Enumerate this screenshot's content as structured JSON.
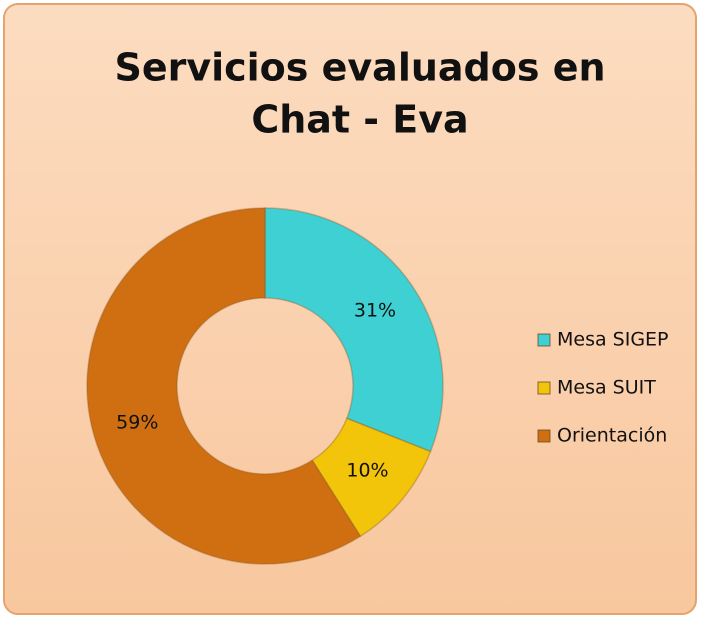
{
  "chart_data": {
    "type": "donut",
    "title": [
      "Servicios evaluados en",
      "Chat - Eva"
    ],
    "categories": [
      "Mesa SIGEP",
      "Mesa SUIT",
      "Orientación"
    ],
    "values": [
      31,
      10,
      59
    ],
    "value_labels": [
      "31%",
      "10%",
      "59%"
    ],
    "colors": [
      "#3ed0d2",
      "#f2c40a",
      "#cf6f12"
    ],
    "legend": "right"
  }
}
